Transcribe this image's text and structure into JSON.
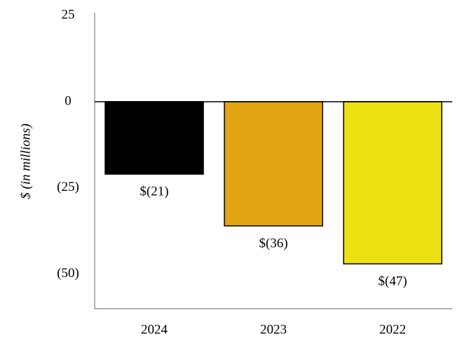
{
  "chart_data": {
    "type": "bar",
    "y_label": "$ (in millions)",
    "categories": [
      "2024",
      "2023",
      "2022"
    ],
    "values": [
      -21,
      -36,
      -47
    ],
    "value_labels": [
      "$(21)",
      "$(36)",
      "$(47)"
    ],
    "colors": [
      "#000000",
      "#e3a514",
      "#ede012"
    ],
    "ylim": [
      -60,
      25
    ],
    "yticks": [
      25,
      0,
      {
        "value": -25,
        "label": "(25)"
      },
      {
        "value": -50,
        "label": "(50)"
      }
    ],
    "grid": false
  }
}
